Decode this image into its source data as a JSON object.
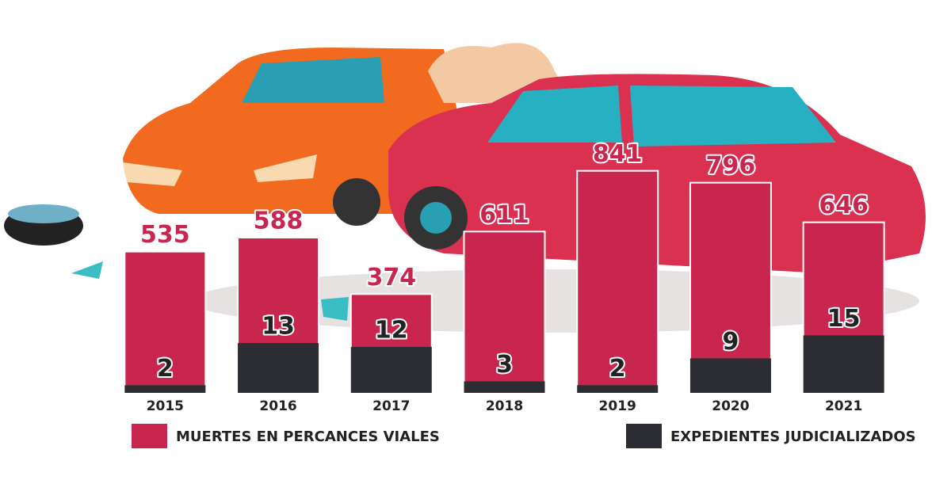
{
  "chart_data": {
    "type": "bar",
    "categories": [
      "2015",
      "2016",
      "2017",
      "2018",
      "2019",
      "2020",
      "2021"
    ],
    "series": [
      {
        "name": "MUERTES EN PERCANCES VIALES",
        "color": "#c8264e",
        "values": [
          535,
          588,
          374,
          611,
          841,
          796,
          646
        ]
      },
      {
        "name": "EXPEDIENTES JUDICIALIZADOS",
        "color": "#2b2d33",
        "values": [
          2,
          13,
          12,
          3,
          2,
          9,
          15
        ],
        "axis": "y2"
      }
    ],
    "ylim": [
      0,
      900
    ],
    "y2lim": [
      0,
      62
    ],
    "legend": "bottom"
  }
}
